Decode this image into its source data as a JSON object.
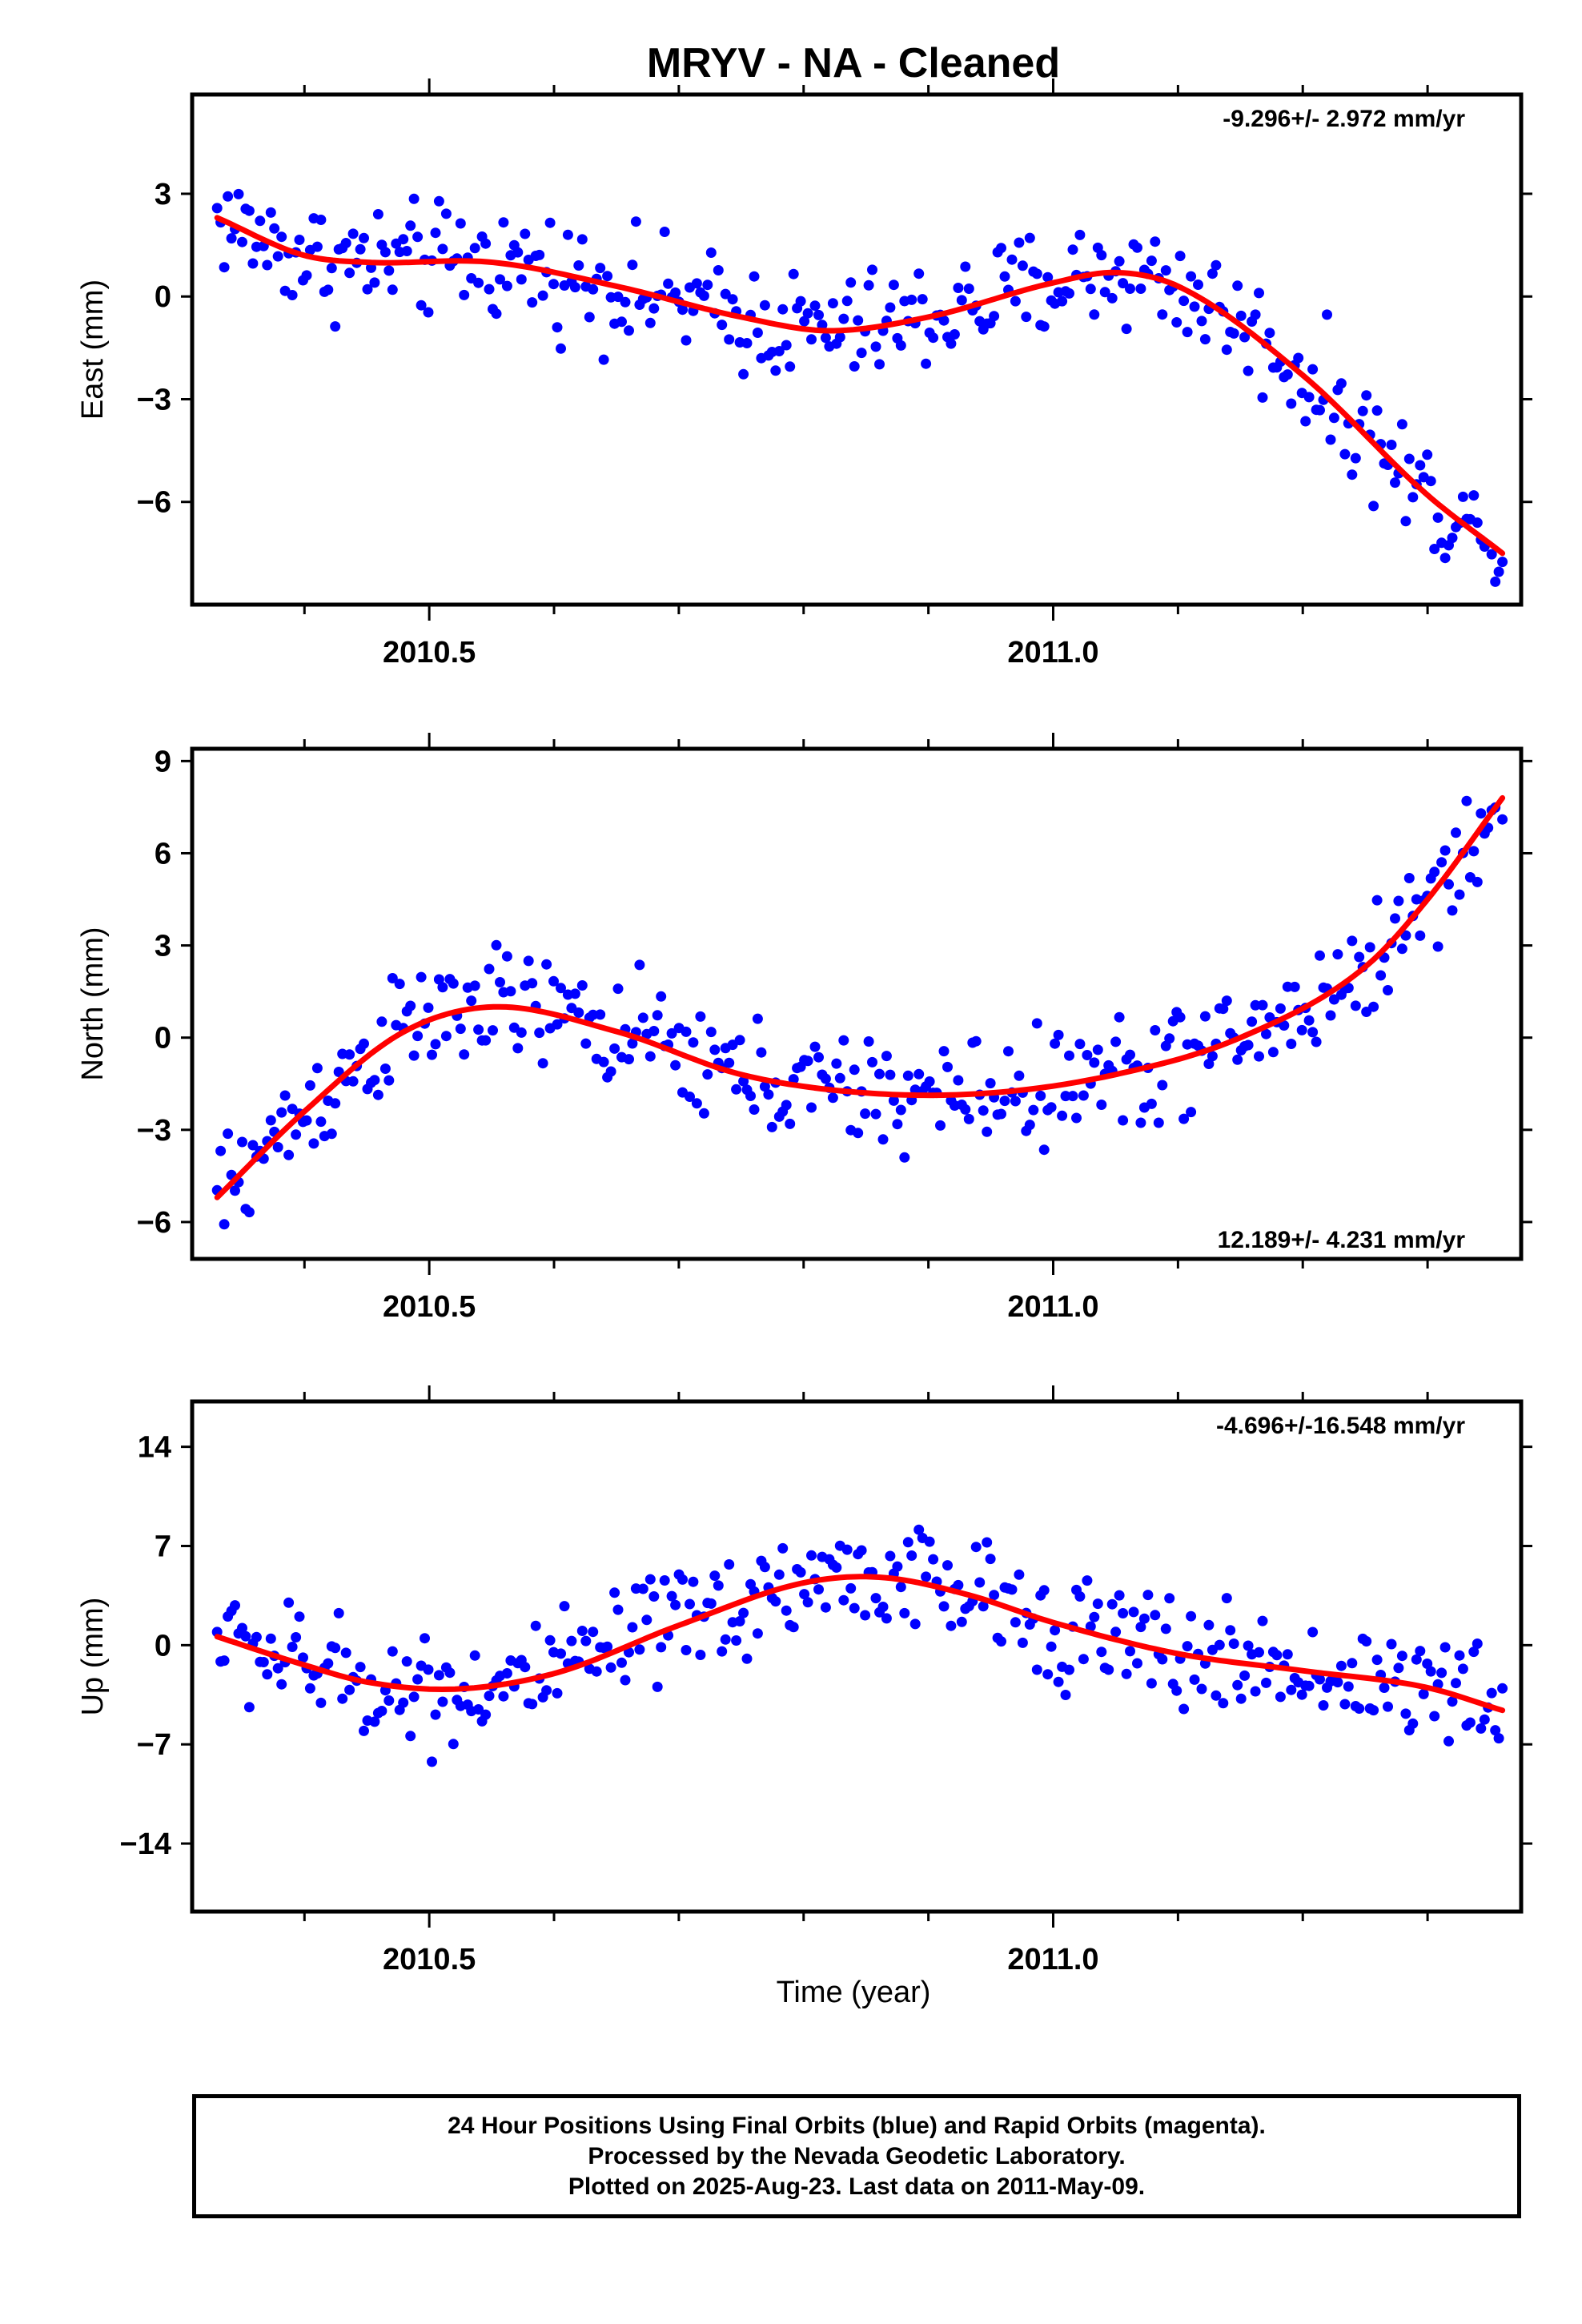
{
  "title": "MRYV  - NA - Cleaned",
  "xlabel": "Time (year)",
  "footer": {
    "line1": "24 Hour Positions Using Final Orbits (blue) and Rapid Orbits (magenta).",
    "line2": "Processed by the Nevada Geodetic Laboratory.",
    "line3": "Plotted on 2025-Aug-23. Last data on 2011-May-09."
  },
  "colors": {
    "points": "#0000ff",
    "fit": "#ff0000",
    "frame": "#000000"
  },
  "chart_data": [
    {
      "type": "scatter",
      "ylabel": "East (mm)",
      "rate": "-9.296+/- 2.972 mm/yr",
      "rate_position": "top-right",
      "xlim": [
        2010.31,
        2011.375
      ],
      "ylim": [
        -9.0,
        5.9
      ],
      "yticks": [
        3,
        0,
        -3,
        -6
      ],
      "ytick_labels": [
        "3",
        "0",
        "−3",
        "−6"
      ],
      "xticks": [
        2010.5,
        2011.0
      ],
      "xtick_labels": [
        "2010.5",
        "2011.0"
      ],
      "grid": false,
      "fit": {
        "x": [
          2010.33,
          2010.4,
          2010.45,
          2010.55,
          2010.65,
          2010.75,
          2010.82,
          2010.9,
          2011.0,
          2011.05,
          2011.1,
          2011.2,
          2011.3,
          2011.36
        ],
        "y": [
          2.3,
          1.2,
          1.0,
          1.0,
          0.3,
          -0.6,
          -1.0,
          -0.6,
          0.4,
          0.7,
          0.3,
          -2.3,
          -5.8,
          -7.5
        ]
      }
    },
    {
      "type": "scatter",
      "ylabel": "North (mm)",
      "rate": "12.189+/- 4.231 mm/yr",
      "rate_position": "bottom-right",
      "xlim": [
        2010.31,
        2011.375
      ],
      "ylim": [
        -7.2,
        9.4
      ],
      "yticks": [
        9,
        6,
        3,
        0,
        -3,
        -6
      ],
      "ytick_labels": [
        "9",
        "6",
        "3",
        "0",
        "−3",
        "−6"
      ],
      "xticks": [
        2010.5,
        2011.0
      ],
      "xtick_labels": [
        "2010.5",
        "2011.0"
      ],
      "grid": false,
      "fit": {
        "x": [
          2010.33,
          2010.4,
          2010.48,
          2010.55,
          2010.65,
          2010.75,
          2010.85,
          2010.95,
          2011.05,
          2011.15,
          2011.25,
          2011.3,
          2011.36
        ],
        "y": [
          -5.2,
          -2.4,
          0.2,
          1.0,
          0.2,
          -1.2,
          -1.8,
          -1.8,
          -1.2,
          0.0,
          2.3,
          4.5,
          7.8
        ]
      }
    },
    {
      "type": "scatter",
      "ylabel": "Up (mm)",
      "rate": "-4.696+/-16.548 mm/yr",
      "rate_position": "top-right",
      "xlim": [
        2010.31,
        2011.375
      ],
      "ylim": [
        -18.8,
        17.2
      ],
      "yticks": [
        14,
        7,
        0,
        -7,
        -14
      ],
      "ytick_labels": [
        "14",
        "7",
        "0",
        "−7",
        "−14"
      ],
      "xticks": [
        2010.5,
        2011.0
      ],
      "xtick_labels": [
        "2010.5",
        "2011.0"
      ],
      "grid": false,
      "fit": {
        "x": [
          2010.33,
          2010.4,
          2010.45,
          2010.52,
          2010.6,
          2010.7,
          2010.8,
          2010.86,
          2010.93,
          2011.0,
          2011.1,
          2011.2,
          2011.3,
          2011.36
        ],
        "y": [
          0.6,
          -1.4,
          -2.6,
          -3.1,
          -2.0,
          1.4,
          4.4,
          4.8,
          3.6,
          1.6,
          -0.6,
          -1.8,
          -3.0,
          -4.6
        ]
      }
    }
  ]
}
